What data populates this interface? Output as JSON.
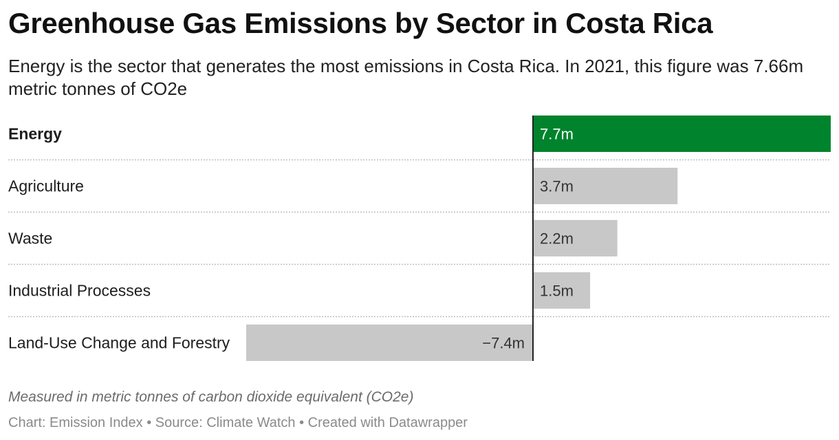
{
  "header": {
    "title": "Greenhouse Gas Emissions by Sector in Costa Rica",
    "subtitle": "Energy is the sector that generates the most emissions in Costa Rica. In 2021, this figure was 7.66m metric tonnes of CO2e"
  },
  "chart_data": {
    "type": "bar",
    "orientation": "horizontal",
    "categories": [
      "Energy",
      "Agriculture",
      "Waste",
      "Industrial Processes",
      "Land-Use Change and Forestry"
    ],
    "values": [
      7.66,
      3.72,
      2.17,
      1.47,
      -7.37
    ],
    "value_labels": [
      "7.7m",
      "3.7m",
      "2.2m",
      "1.5m",
      "−7.4m"
    ],
    "highlight": [
      "Energy"
    ],
    "xlim": [
      -7.37,
      7.66
    ],
    "colors": {
      "highlight": "#00832d",
      "default": "#c8c8c8",
      "highlight_text": "#ffffff",
      "default_text": "#333333"
    }
  },
  "notes": {
    "measure": "Measured in metric tonnes of carbon dioxide equivalent (CO2e)",
    "footer": "Chart: Emission Index • Source: Climate Watch • Created with Datawrapper"
  }
}
